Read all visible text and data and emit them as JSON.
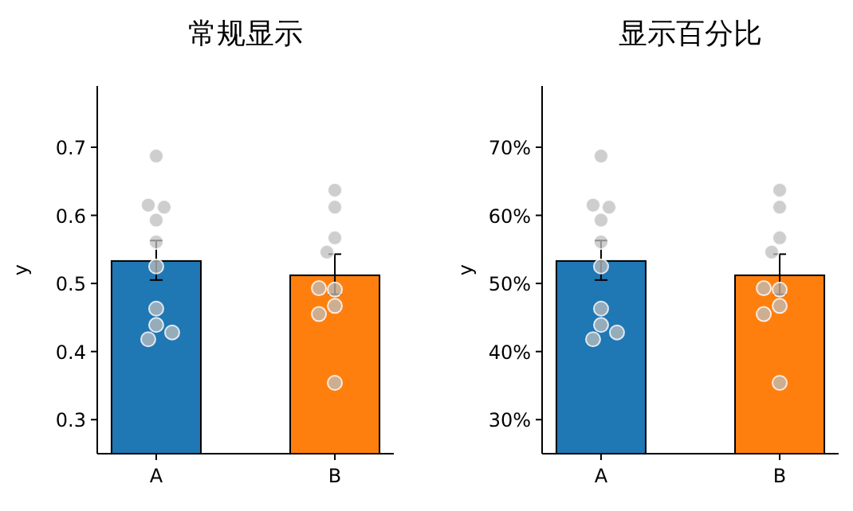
{
  "chart_data": [
    {
      "type": "bar",
      "title": "常规显示",
      "ylabel": "y",
      "categories": [
        "A",
        "B"
      ],
      "ylim": [
        0.25,
        0.79
      ],
      "yticks": [
        0.3,
        0.4,
        0.5,
        0.6,
        0.7
      ],
      "grid": false,
      "series": [
        {
          "colors": [
            "#1f77b4",
            "#ff7f0e"
          ],
          "values": [
            0.533,
            0.512
          ],
          "errors": [
            [
              0.505,
              0.563
            ],
            [
              0.484,
              0.543
            ]
          ]
        },
        {
          "type": "scatter",
          "color": "#bdbdbd",
          "marker": "circle",
          "x": [
            "A",
            "A",
            "A",
            "A",
            "A",
            "A",
            "A",
            "A",
            "A",
            "A",
            "B",
            "B",
            "B",
            "B",
            "B",
            "B",
            "B",
            "B",
            "B"
          ],
          "values": [
            0.687,
            0.593,
            0.615,
            0.612,
            0.561,
            0.525,
            0.463,
            0.439,
            0.418,
            0.428,
            0.637,
            0.612,
            0.567,
            0.546,
            0.491,
            0.493,
            0.467,
            0.455,
            0.354
          ]
        }
      ]
    },
    {
      "type": "bar",
      "title": "显示百分比",
      "ylabel": "y",
      "categories": [
        "A",
        "B"
      ],
      "ylim": [
        25,
        79
      ],
      "yticks": [
        {
          "value": 30,
          "label": "30%"
        },
        {
          "value": 40,
          "label": "40%"
        },
        {
          "value": 50,
          "label": "50%"
        },
        {
          "value": 60,
          "label": "60%"
        },
        {
          "value": 70,
          "label": "70%"
        }
      ],
      "grid": false,
      "series": [
        {
          "colors": [
            "#1f77b4",
            "#ff7f0e"
          ],
          "values": [
            53.3,
            51.2
          ],
          "errors": [
            [
              50.5,
              56.3
            ],
            [
              48.4,
              54.3
            ]
          ]
        },
        {
          "type": "scatter",
          "color": "#bdbdbd",
          "marker": "circle",
          "x": [
            "A",
            "A",
            "A",
            "A",
            "A",
            "A",
            "A",
            "A",
            "A",
            "A",
            "B",
            "B",
            "B",
            "B",
            "B",
            "B",
            "B",
            "B",
            "B"
          ],
          "values": [
            68.7,
            59.3,
            61.5,
            61.2,
            56.1,
            52.5,
            46.3,
            43.9,
            41.8,
            42.8,
            63.7,
            61.2,
            56.7,
            54.6,
            49.1,
            49.3,
            46.7,
            45.5,
            35.4
          ]
        }
      ]
    }
  ]
}
